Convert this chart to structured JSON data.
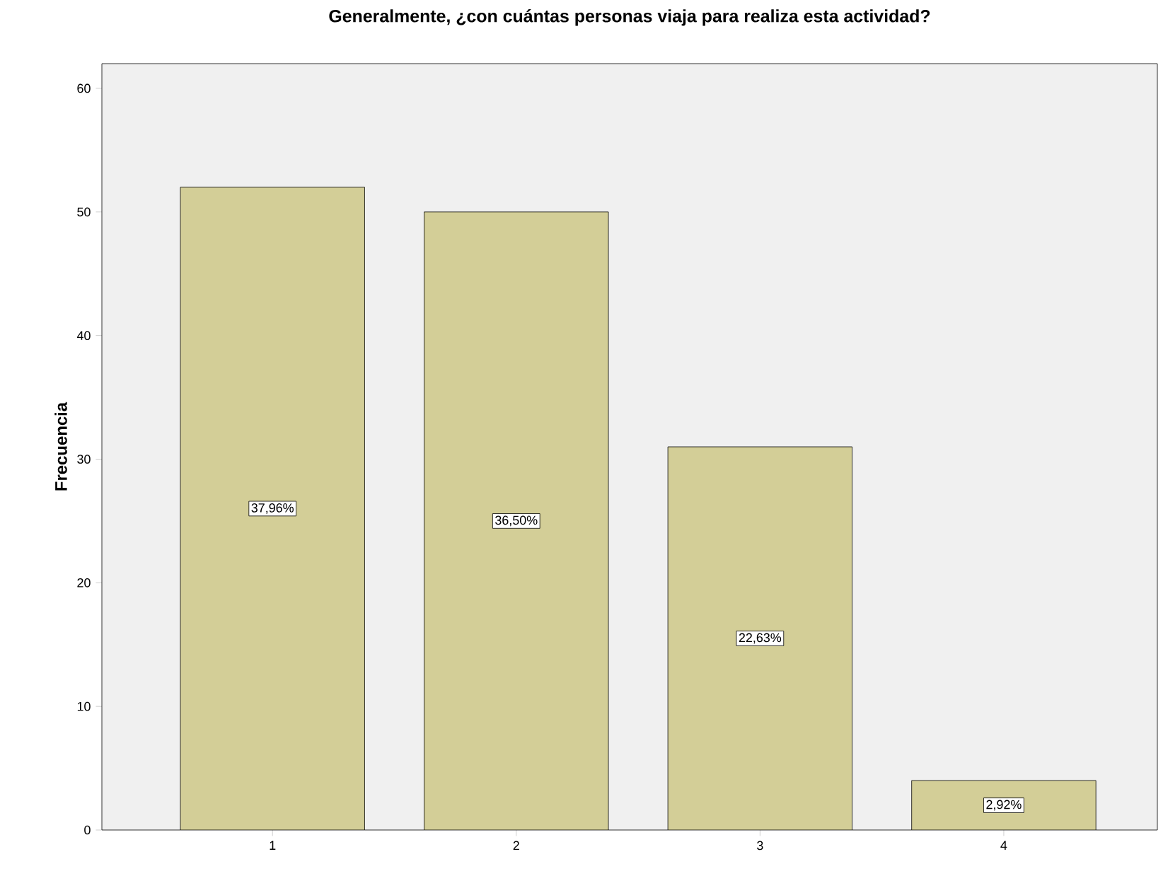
{
  "chart_data": {
    "type": "bar",
    "title": "Generalmente, ¿con cuántas personas viaja para realiza esta actividad?",
    "ylabel": "Frecuencia",
    "categories": [
      "1",
      "2",
      "3",
      "4"
    ],
    "values": [
      52,
      50,
      31,
      4
    ],
    "annotations": [
      {
        "text": "37,96%",
        "x": "1",
        "y": 26
      },
      {
        "text": "36,50%",
        "x": "2",
        "y": 25
      },
      {
        "text": "22,63%",
        "x": "3",
        "y": 15.5
      },
      {
        "text": "2,92%",
        "x": "4",
        "y": 2
      }
    ],
    "color": "#d3ce97",
    "ylim": [
      0,
      62
    ],
    "yticks": [
      0,
      10,
      20,
      30,
      40,
      50,
      60
    ],
    "grid": false
  }
}
